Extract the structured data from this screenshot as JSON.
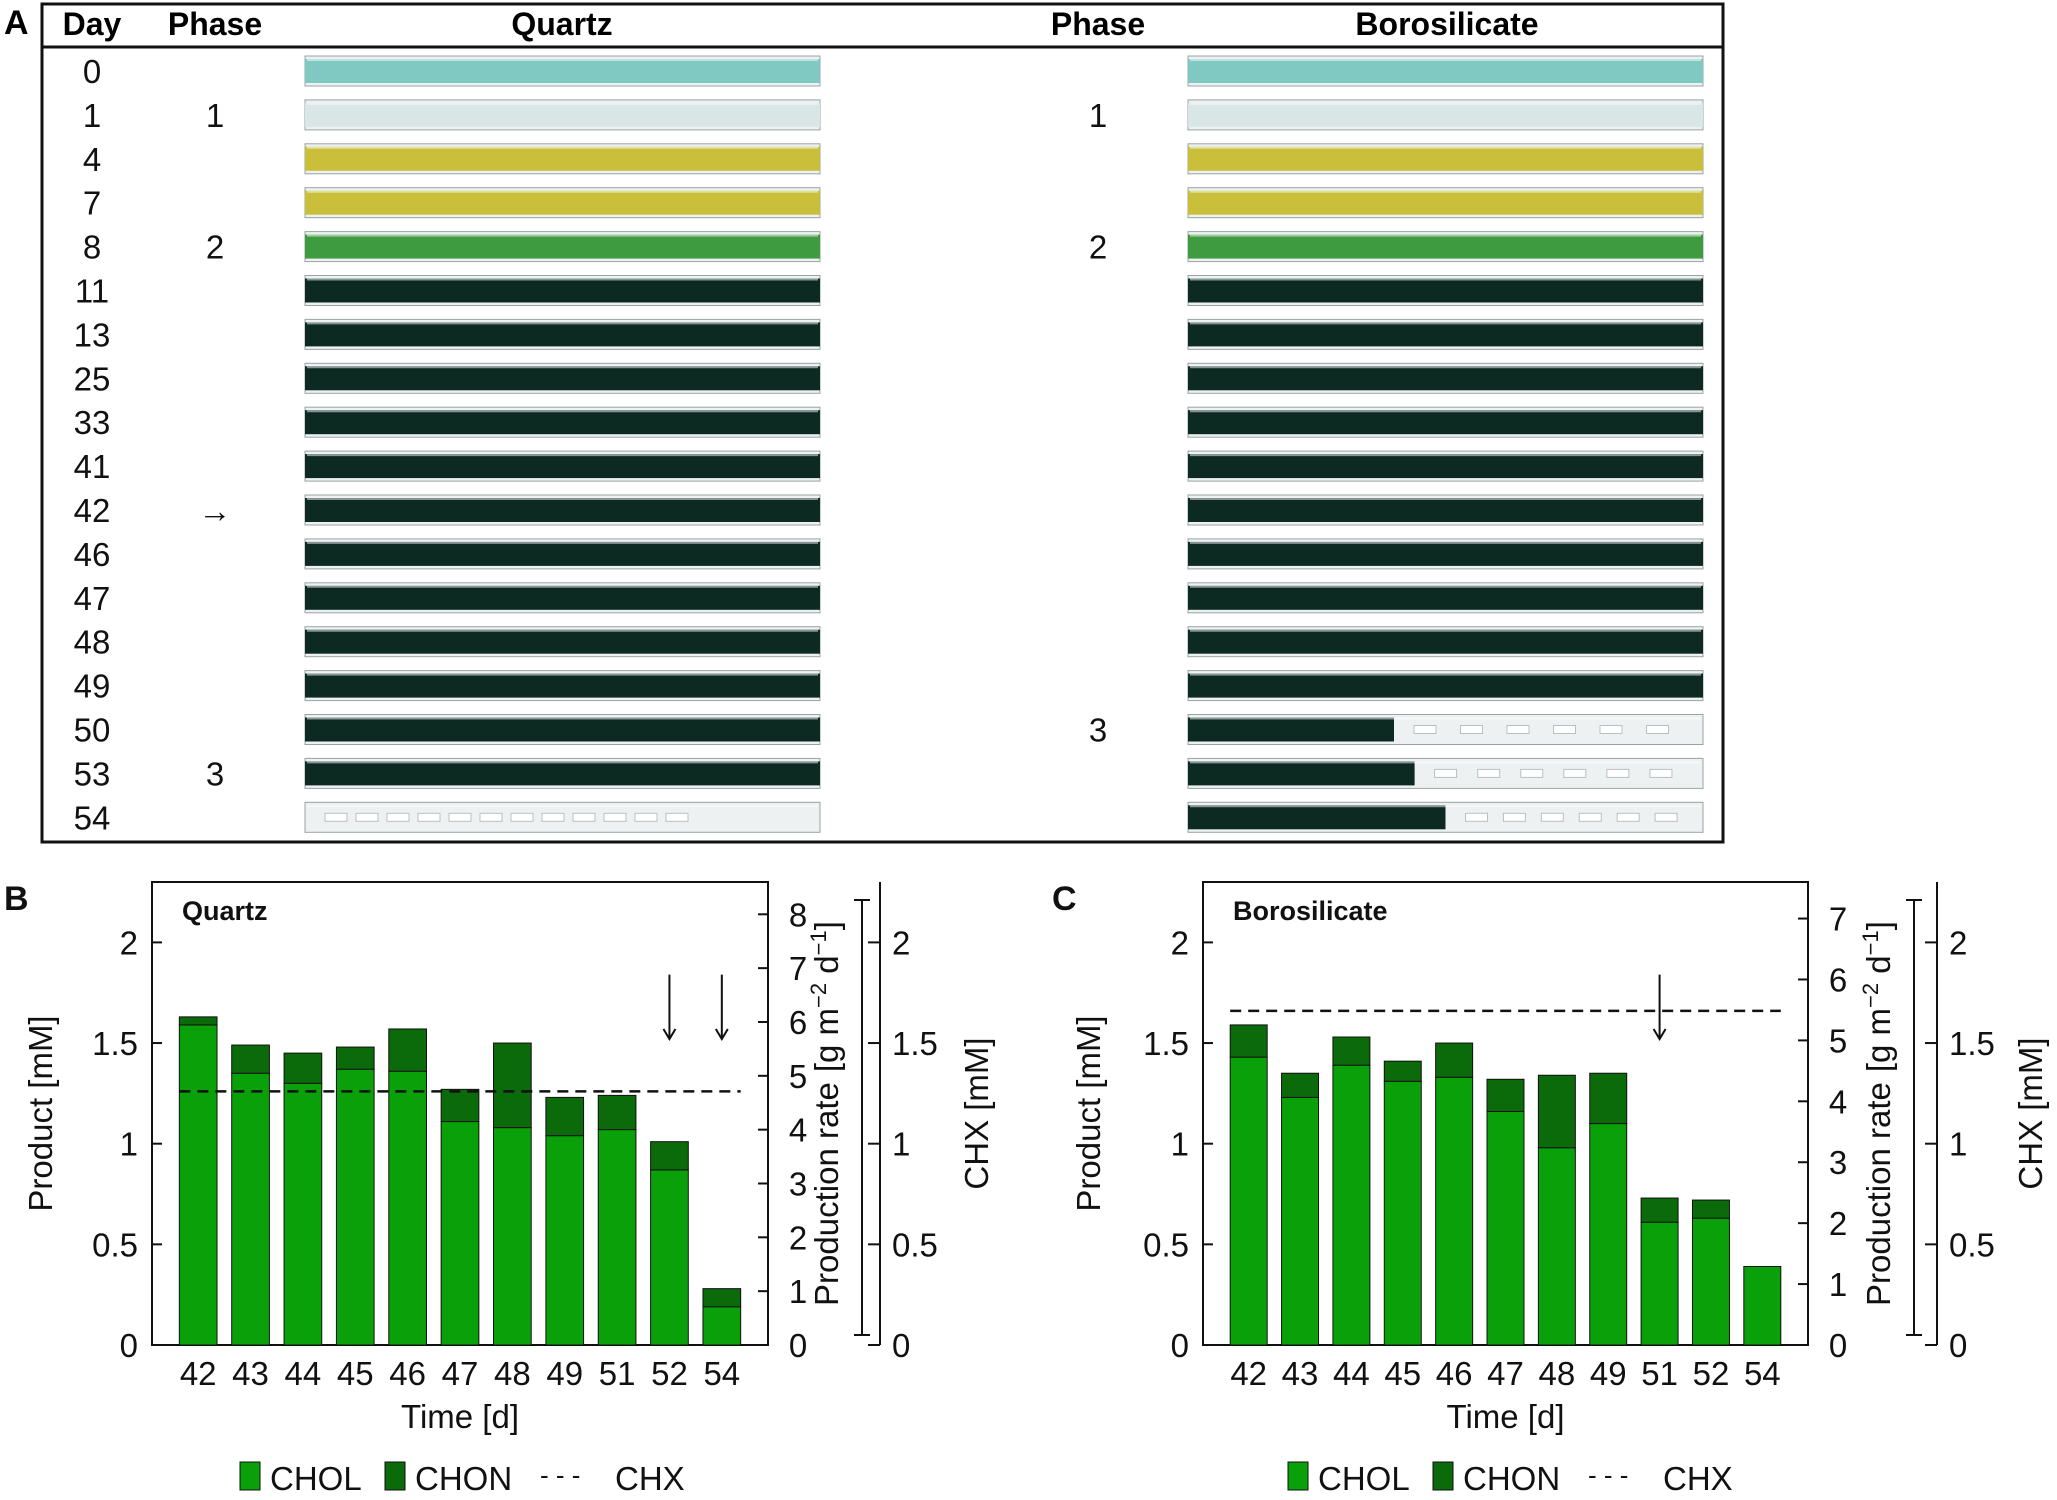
{
  "panel_a": {
    "letter": "A",
    "headers": {
      "day": "Day",
      "phase": "Phase",
      "quartz": "Quartz",
      "phase2": "Phase",
      "borosilicate": "Borosilicate"
    },
    "rows": [
      {
        "day": "0",
        "quartz_phase": "",
        "boro_phase": "",
        "quartz_tube": "cyan",
        "boro_tube": "cyan"
      },
      {
        "day": "1",
        "quartz_phase": "1",
        "boro_phase": "1",
        "quartz_tube": "clear",
        "boro_tube": "clear"
      },
      {
        "day": "4",
        "quartz_phase": "",
        "boro_phase": "",
        "quartz_tube": "yellow",
        "boro_tube": "yellow"
      },
      {
        "day": "7",
        "quartz_phase": "",
        "boro_phase": "",
        "quartz_tube": "yellow",
        "boro_tube": "yellow"
      },
      {
        "day": "8",
        "quartz_phase": "2",
        "boro_phase": "2",
        "quartz_tube": "green",
        "boro_tube": "green"
      },
      {
        "day": "11",
        "quartz_phase": "",
        "boro_phase": "",
        "quartz_tube": "dark",
        "boro_tube": "dark"
      },
      {
        "day": "13",
        "quartz_phase": "",
        "boro_phase": "",
        "quartz_tube": "dark",
        "boro_tube": "dark"
      },
      {
        "day": "25",
        "quartz_phase": "",
        "boro_phase": "",
        "quartz_tube": "dark",
        "boro_tube": "dark"
      },
      {
        "day": "33",
        "quartz_phase": "",
        "boro_phase": "",
        "quartz_tube": "dark",
        "boro_tube": "dark"
      },
      {
        "day": "41",
        "quartz_phase": "",
        "boro_phase": "",
        "quartz_tube": "dark",
        "boro_tube": "dark"
      },
      {
        "day": "42",
        "quartz_phase": "→",
        "boro_phase": "",
        "quartz_tube": "dark",
        "boro_tube": "dark"
      },
      {
        "day": "46",
        "quartz_phase": "",
        "boro_phase": "",
        "quartz_tube": "dark",
        "boro_tube": "dark"
      },
      {
        "day": "47",
        "quartz_phase": "",
        "boro_phase": "",
        "quartz_tube": "dark",
        "boro_tube": "dark"
      },
      {
        "day": "48",
        "quartz_phase": "",
        "boro_phase": "",
        "quartz_tube": "dark",
        "boro_tube": "dark"
      },
      {
        "day": "49",
        "quartz_phase": "",
        "boro_phase": "",
        "quartz_tube": "dark",
        "boro_tube": "dark"
      },
      {
        "day": "50",
        "quartz_phase": "",
        "boro_phase": "3",
        "quartz_tube": "dark",
        "boro_tube": "partial40"
      },
      {
        "day": "53",
        "quartz_phase": "3",
        "boro_phase": "",
        "quartz_tube": "dark",
        "boro_tube": "partial44"
      },
      {
        "day": "54",
        "quartz_phase": "",
        "boro_phase": "",
        "quartz_tube": "empty",
        "boro_tube": "partial50"
      }
    ]
  },
  "colors": {
    "chol": "#0aa00a",
    "chon": "#0b6b0b",
    "axis": "#111111",
    "dark_tube": "#0d2a22",
    "cyan_tube": "#7fc9c2",
    "yellow_tube": "#c9bf3a",
    "green_tube": "#3f9b3f",
    "clear_tube": "#d9e6e6"
  },
  "legend": {
    "chol": "CHOL",
    "chon": "CHON",
    "chx_dash": "- - -",
    "chx": "CHX"
  },
  "chart_data": [
    {
      "panel": "B",
      "type": "bar",
      "title": "Quartz",
      "xlabel": "Time [d]",
      "ylabel": "Product [mM]",
      "y2label": "Production rate",
      "y2unit": "[g m",
      "y2exp1": "−2",
      "y2mid": " d",
      "y2exp2": "−1",
      "y2close": "]",
      "y3label": "CHX [mM]",
      "ylim": [
        0,
        2.3
      ],
      "yticks": [
        0,
        0.5,
        1,
        1.5,
        2
      ],
      "ytick_labels": [
        "0",
        "0.5",
        "1",
        "1.5",
        "2"
      ],
      "y2lim": [
        0,
        8.6
      ],
      "y2ticks": [
        0,
        1,
        2,
        3,
        4,
        5,
        6,
        7,
        8
      ],
      "y2tick_labels": [
        "0",
        "1",
        "2",
        "3",
        "4",
        "5",
        "6",
        "7",
        "8"
      ],
      "y3ticks": [
        0,
        0.5,
        1,
        1.5,
        2
      ],
      "y3tick_labels": [
        "0",
        "0.5",
        "1",
        "1.5",
        "2"
      ],
      "categories": [
        "42",
        "43",
        "44",
        "45",
        "46",
        "47",
        "48",
        "49",
        "51",
        "52",
        "54"
      ],
      "series": [
        {
          "name": "CHOL",
          "values": [
            1.59,
            1.35,
            1.3,
            1.37,
            1.36,
            1.11,
            1.08,
            1.04,
            1.07,
            0.87,
            0.19
          ]
        },
        {
          "name": "CHON",
          "values": [
            0.04,
            0.14,
            0.15,
            0.11,
            0.21,
            0.16,
            0.42,
            0.19,
            0.17,
            0.14,
            0.09
          ]
        }
      ],
      "chx": 1.26,
      "arrows_at": [
        "52",
        "54"
      ]
    },
    {
      "panel": "C",
      "type": "bar",
      "title": "Borosilicate",
      "xlabel": "Time [d]",
      "ylabel": "Product [mM]",
      "y2label": "Production rate",
      "y2unit": "[g m",
      "y2exp1": "−2",
      "y2mid": " d",
      "y2exp2": "−1",
      "y2close": "]",
      "y3label": "CHX [mM]",
      "ylim": [
        0,
        2.3
      ],
      "yticks": [
        0,
        0.5,
        1,
        1.5,
        2
      ],
      "ytick_labels": [
        "0",
        "0.5",
        "1",
        "1.5",
        "2"
      ],
      "y2lim": [
        0,
        7.6
      ],
      "y2ticks": [
        0,
        1,
        2,
        3,
        4,
        5,
        6,
        7
      ],
      "y2tick_labels": [
        "0",
        "1",
        "2",
        "3",
        "4",
        "5",
        "6",
        "7"
      ],
      "y3ticks": [
        0,
        0.5,
        1,
        1.5,
        2
      ],
      "y3tick_labels": [
        "0",
        "0.5",
        "1",
        "1.5",
        "2"
      ],
      "categories": [
        "42",
        "43",
        "44",
        "45",
        "46",
        "47",
        "48",
        "49",
        "51",
        "52",
        "54"
      ],
      "series": [
        {
          "name": "CHOL",
          "values": [
            1.43,
            1.23,
            1.39,
            1.31,
            1.33,
            1.16,
            0.98,
            1.1,
            0.61,
            0.63,
            0.39
          ]
        },
        {
          "name": "CHON",
          "values": [
            0.16,
            0.12,
            0.14,
            0.1,
            0.17,
            0.16,
            0.36,
            0.25,
            0.12,
            0.09,
            0.0
          ]
        }
      ],
      "chx": 1.66,
      "arrows_at": [
        "51"
      ]
    }
  ]
}
